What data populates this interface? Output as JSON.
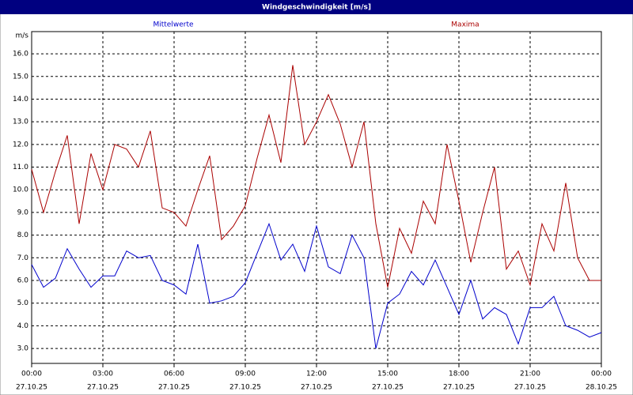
{
  "chart_data": {
    "type": "line",
    "title": "Windgeschwindigkeit [m/s]",
    "y_unit": "m/s",
    "x": [
      0,
      0.5,
      1,
      1.5,
      2,
      2.5,
      3,
      3.5,
      4,
      4.5,
      5,
      5.5,
      6,
      6.5,
      7,
      7.5,
      8,
      8.5,
      9,
      9.5,
      10,
      10.5,
      11,
      11.5,
      12,
      12.5,
      13,
      13.5,
      14,
      14.5,
      15,
      15.5,
      16,
      16.5,
      17,
      17.5,
      18,
      18.5,
      19,
      19.5,
      20,
      20.5,
      21,
      21.5,
      22,
      22.5,
      23,
      23.5,
      24
    ],
    "series": [
      {
        "name": "Mittelwerte",
        "color": "#0000cc",
        "values": [
          6.7,
          5.7,
          6.1,
          7.4,
          6.5,
          5.7,
          6.2,
          6.2,
          7.3,
          7.0,
          7.1,
          6.0,
          5.8,
          5.4,
          7.6,
          5.0,
          5.1,
          5.3,
          5.9,
          7.2,
          8.5,
          6.9,
          7.6,
          6.4,
          8.4,
          6.6,
          6.3,
          8.0,
          7.0,
          3.0,
          5.0,
          5.4,
          6.4,
          5.8,
          6.9,
          5.7,
          4.5,
          6.0,
          4.3,
          4.8,
          4.5,
          3.2,
          4.8,
          4.8,
          5.3,
          4.0,
          3.8,
          3.5,
          3.7
        ]
      },
      {
        "name": "Maxima",
        "color": "#aa0000",
        "values": [
          10.9,
          9.0,
          10.8,
          12.4,
          8.5,
          11.6,
          10.0,
          12.0,
          11.8,
          11.0,
          12.6,
          9.2,
          9.0,
          8.4,
          10.0,
          11.5,
          7.8,
          8.4,
          9.3,
          11.4,
          13.3,
          11.2,
          15.5,
          12.0,
          13.0,
          14.2,
          12.9,
          11.0,
          13.0,
          8.5,
          5.7,
          8.3,
          7.2,
          9.5,
          8.5,
          12.0,
          9.5,
          6.8,
          9.0,
          11.0,
          6.5,
          7.3,
          5.8,
          8.5,
          7.3,
          10.3,
          7.0,
          6.0,
          6.0
        ]
      }
    ],
    "xlim": [
      0,
      24
    ],
    "xticks": [
      {
        "value": 0,
        "label": "00:00",
        "date": "27.10.25"
      },
      {
        "value": 3,
        "label": "03:00",
        "date": "27.10.25"
      },
      {
        "value": 6,
        "label": "06:00",
        "date": "27.10.25"
      },
      {
        "value": 9,
        "label": "09:00",
        "date": "27.10.25"
      },
      {
        "value": 12,
        "label": "12:00",
        "date": "27.10.25"
      },
      {
        "value": 15,
        "label": "15:00",
        "date": "27.10.25"
      },
      {
        "value": 18,
        "label": "18:00",
        "date": "27.10.25"
      },
      {
        "value": 21,
        "label": "21:00",
        "date": "27.10.25"
      },
      {
        "value": 24,
        "label": "00:00",
        "date": "28.10.25"
      }
    ],
    "ylim": [
      2.34,
      16.98
    ],
    "yticks": [
      {
        "value": 3,
        "label": "3.0"
      },
      {
        "value": 4,
        "label": "4.0"
      },
      {
        "value": 5,
        "label": "5.0"
      },
      {
        "value": 6,
        "label": "6.0"
      },
      {
        "value": 7,
        "label": "7.0"
      },
      {
        "value": 8,
        "label": "8.0"
      },
      {
        "value": 9,
        "label": "9.0"
      },
      {
        "value": 10,
        "label": "10.0"
      },
      {
        "value": 11,
        "label": "11.0"
      },
      {
        "value": 12,
        "label": "12.0"
      },
      {
        "value": 13,
        "label": "13.0"
      },
      {
        "value": 14,
        "label": "14.0"
      },
      {
        "value": 15,
        "label": "15.0"
      },
      {
        "value": 16,
        "label": "16.0"
      }
    ],
    "grid": true
  }
}
